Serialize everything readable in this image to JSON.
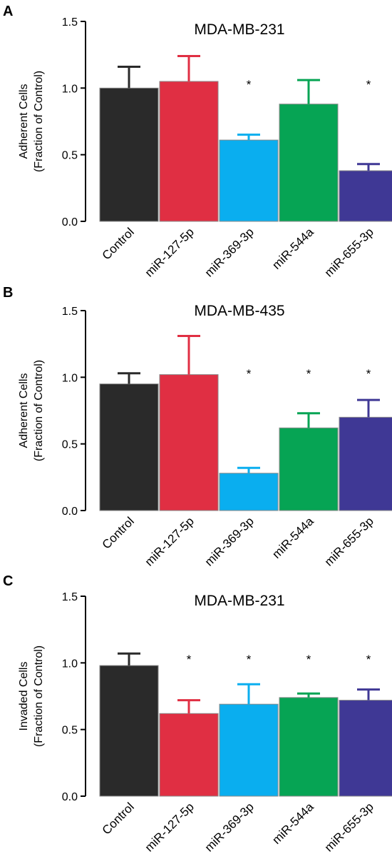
{
  "figure": {
    "colors": {
      "Control": "#2a2a2a",
      "miR-127-5p": "#e02f43",
      "miR-369-3p": "#0aaeef",
      "miR-544a": "#06a454",
      "miR-655-3p": "#3f3895"
    }
  },
  "chart_data": [
    {
      "panel": "A",
      "type": "bar",
      "title": "MDA-MB-231",
      "ylabel": [
        "Adherent Cells",
        "(Fraction of Control)"
      ],
      "categories": [
        "Control",
        "miR-127-5p",
        "miR-369-3p",
        "miR-544a",
        "miR-655-3p"
      ],
      "values": [
        1.0,
        1.05,
        0.61,
        0.88,
        0.38
      ],
      "errors": [
        0.16,
        0.19,
        0.04,
        0.18,
        0.05
      ],
      "significant": [
        false,
        false,
        true,
        false,
        true
      ],
      "significance_marker": "*",
      "ylim": [
        0.0,
        1.5
      ],
      "yticks": [
        "0.0",
        "0.5",
        "1.0",
        "1.5"
      ],
      "grid": false
    },
    {
      "panel": "B",
      "type": "bar",
      "title": "MDA-MB-435",
      "ylabel": [
        "Adherent Cells",
        "(Fraction of Control)"
      ],
      "categories": [
        "Control",
        "miR-127-5p",
        "miR-369-3p",
        "miR-544a",
        "miR-655-3p"
      ],
      "values": [
        0.95,
        1.02,
        0.28,
        0.62,
        0.7
      ],
      "errors": [
        0.08,
        0.29,
        0.04,
        0.11,
        0.13
      ],
      "significant": [
        false,
        false,
        true,
        true,
        true
      ],
      "significance_marker": "*",
      "ylim": [
        0.0,
        1.5
      ],
      "yticks": [
        "0.0",
        "0.5",
        "1.0",
        "1.5"
      ],
      "grid": false
    },
    {
      "panel": "C",
      "type": "bar",
      "title": "MDA-MB-231",
      "ylabel": [
        "Invaded Cells",
        "(Fraction of Control)"
      ],
      "categories": [
        "Control",
        "miR-127-5p",
        "miR-369-3p",
        "miR-544a",
        "miR-655-3p"
      ],
      "values": [
        0.98,
        0.62,
        0.69,
        0.74,
        0.72
      ],
      "errors": [
        0.09,
        0.1,
        0.15,
        0.03,
        0.08
      ],
      "significant": [
        false,
        true,
        true,
        true,
        true
      ],
      "significance_marker": "*",
      "ylim": [
        0.0,
        1.5
      ],
      "yticks": [
        "0.0",
        "0.5",
        "1.0",
        "1.5"
      ],
      "grid": false
    }
  ]
}
